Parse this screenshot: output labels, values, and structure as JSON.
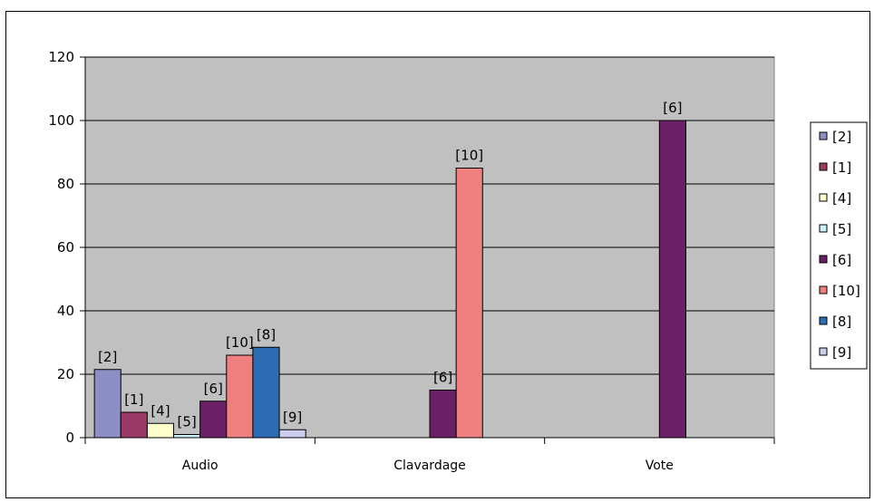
{
  "chart_data": {
    "type": "bar",
    "categories": [
      "Audio",
      "Clavardage",
      "Vote"
    ],
    "series": [
      {
        "name": "[2]",
        "color": "#8e8ec6",
        "values": [
          21.5,
          null,
          null
        ]
      },
      {
        "name": "[1]",
        "color": "#9b3a64",
        "values": [
          8,
          null,
          null
        ]
      },
      {
        "name": "[4]",
        "color": "#ffffcc",
        "values": [
          4.5,
          null,
          null
        ]
      },
      {
        "name": "[5]",
        "color": "#ccf2fa",
        "values": [
          1,
          null,
          null
        ]
      },
      {
        "name": "[6]",
        "color": "#6a1f66",
        "values": [
          11.5,
          15,
          100
        ]
      },
      {
        "name": "[10]",
        "color": "#f08080",
        "values": [
          26,
          85,
          null
        ]
      },
      {
        "name": "[8]",
        "color": "#2b6cb3",
        "values": [
          28.5,
          null,
          null
        ]
      },
      {
        "name": "[9]",
        "color": "#ccccee",
        "values": [
          2.5,
          null,
          null
        ]
      }
    ],
    "title": "",
    "xlabel": "",
    "ylabel": "",
    "ylim": [
      0,
      120
    ],
    "ytick_step": 20,
    "yticks": [
      "0",
      "20",
      "40",
      "60",
      "80",
      "100",
      "120"
    ],
    "grid": true,
    "plot_background": "#c0c0c0",
    "legend_position": "right",
    "data_labels": "series name above each bar"
  }
}
